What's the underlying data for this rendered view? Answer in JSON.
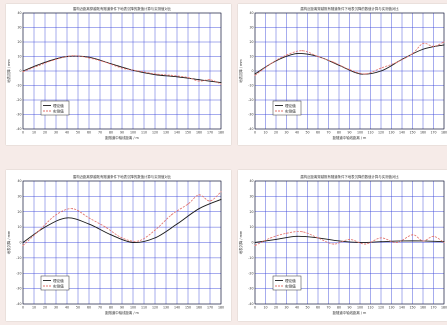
{
  "chart_data": [
    {
      "type": "line",
      "title": "盾构近距离穿越既有隧道条件下地表沉降的数值计算与实测值对比",
      "xlabel": "距隧道中轴线距离 / m",
      "ylabel": "地表沉降 / mm",
      "xlim": [
        0,
        180
      ],
      "ylim": [
        -40,
        40
      ],
      "xticks": [
        0,
        10,
        20,
        30,
        40,
        50,
        60,
        70,
        80,
        90,
        100,
        110,
        120,
        130,
        140,
        150,
        160,
        170,
        180
      ],
      "yticks": [
        -40,
        -30,
        -20,
        -10,
        0,
        10,
        20,
        30,
        40
      ],
      "grid": true,
      "legend": "bottom-left",
      "series": [
        {
          "name": "理论值",
          "color": "#1a1a1a",
          "dash": "solid",
          "x": [
            0,
            20,
            40,
            60,
            80,
            100,
            120,
            140,
            160,
            180
          ],
          "y": [
            0,
            6,
            10,
            9.5,
            5,
            0.5,
            -2.5,
            -4,
            -6,
            -8
          ]
        },
        {
          "name": "实测值",
          "color": "#e2706a",
          "dash": "dashed",
          "x": [
            0,
            15,
            30,
            45,
            60,
            75,
            90,
            105,
            120,
            135,
            150,
            160,
            170,
            180
          ],
          "y": [
            -0.5,
            4,
            8,
            10.5,
            9,
            6,
            2,
            0,
            -2,
            -3,
            -4.5,
            -7,
            -6,
            -9
          ]
        }
      ]
    },
    {
      "type": "line",
      "title": "盾构近距离穿越既有隧道条件下地表沉降的数值计算与实测值对比",
      "xlabel": "距隧道中轴线距离 / m",
      "ylabel": "地表沉降 / mm",
      "xlim": [
        0,
        180
      ],
      "ylim": [
        -40,
        40
      ],
      "xticks": [
        0,
        10,
        20,
        30,
        40,
        50,
        60,
        70,
        80,
        90,
        100,
        110,
        120,
        130,
        140,
        150,
        160,
        170,
        180
      ],
      "yticks": [
        -40,
        -30,
        -20,
        -10,
        0,
        10,
        20,
        30,
        40
      ],
      "grid": true,
      "legend": "bottom-left",
      "series": [
        {
          "name": "理论值",
          "color": "#1a1a1a",
          "dash": "solid",
          "x": [
            0,
            20,
            40,
            60,
            80,
            100,
            120,
            140,
            160,
            180
          ],
          "y": [
            -2,
            7,
            12,
            10,
            4,
            -2,
            0,
            8,
            15,
            18
          ]
        },
        {
          "name": "实测值",
          "color": "#e2706a",
          "dash": "dashed",
          "x": [
            0,
            15,
            30,
            45,
            60,
            75,
            90,
            105,
            120,
            135,
            150,
            160,
            170,
            180
          ],
          "y": [
            -3,
            5,
            11,
            14,
            10,
            6,
            1,
            -2,
            2,
            6,
            12,
            19,
            17,
            20
          ]
        }
      ]
    },
    {
      "type": "line",
      "title": "盾构近距离穿越既有隧道条件下地表沉降的数值计算与实测值对比",
      "xlabel": "距隧道中轴线距离 / m",
      "ylabel": "地表沉降 / mm",
      "xlim": [
        0,
        180
      ],
      "ylim": [
        -40,
        40
      ],
      "xticks": [
        0,
        10,
        20,
        30,
        40,
        50,
        60,
        70,
        80,
        90,
        100,
        110,
        120,
        130,
        140,
        150,
        160,
        170,
        180
      ],
      "yticks": [
        -40,
        -30,
        -20,
        -10,
        0,
        10,
        20,
        30,
        40
      ],
      "grid": true,
      "legend": "bottom-left",
      "series": [
        {
          "name": "理论值",
          "color": "#1a1a1a",
          "dash": "solid",
          "x": [
            0,
            20,
            40,
            60,
            80,
            100,
            120,
            140,
            160,
            180
          ],
          "y": [
            0,
            10,
            16,
            12,
            5,
            0,
            3,
            12,
            22,
            28
          ]
        },
        {
          "name": "实测值",
          "color": "#e2706a",
          "dash": "dashed",
          "x": [
            0,
            15,
            30,
            45,
            60,
            75,
            90,
            105,
            120,
            135,
            150,
            160,
            170,
            180
          ],
          "y": [
            -2,
            8,
            18,
            22,
            16,
            10,
            3,
            1,
            8,
            18,
            25,
            31,
            27,
            33
          ]
        }
      ]
    },
    {
      "type": "line",
      "title": "盾构近距离穿越既有隧道条件下地表沉降的数值计算与实测值对比",
      "xlabel": "距隧道中轴线距离 / m",
      "ylabel": "地表沉降 / mm",
      "xlim": [
        0,
        180
      ],
      "ylim": [
        -40,
        40
      ],
      "xticks": [
        0,
        10,
        20,
        30,
        40,
        50,
        60,
        70,
        80,
        90,
        100,
        110,
        120,
        130,
        140,
        150,
        160,
        170,
        180
      ],
      "yticks": [
        -40,
        -30,
        -20,
        -10,
        0,
        10,
        20,
        30,
        40
      ],
      "grid": true,
      "legend": "bottom-left",
      "series": [
        {
          "name": "理论值",
          "color": "#1a1a1a",
          "dash": "solid",
          "x": [
            0,
            20,
            40,
            60,
            80,
            100,
            120,
            140,
            160,
            180
          ],
          "y": [
            0,
            2,
            4,
            3,
            1,
            0,
            0.5,
            1,
            1,
            0.5
          ]
        },
        {
          "name": "实测值",
          "color": "#e2706a",
          "dash": "dashed",
          "x": [
            0,
            15,
            30,
            45,
            60,
            75,
            90,
            105,
            120,
            135,
            150,
            160,
            170,
            180
          ],
          "y": [
            -2,
            3,
            6,
            7,
            3,
            -1,
            2,
            -1,
            3,
            0,
            5,
            1,
            4,
            0
          ]
        }
      ]
    }
  ]
}
